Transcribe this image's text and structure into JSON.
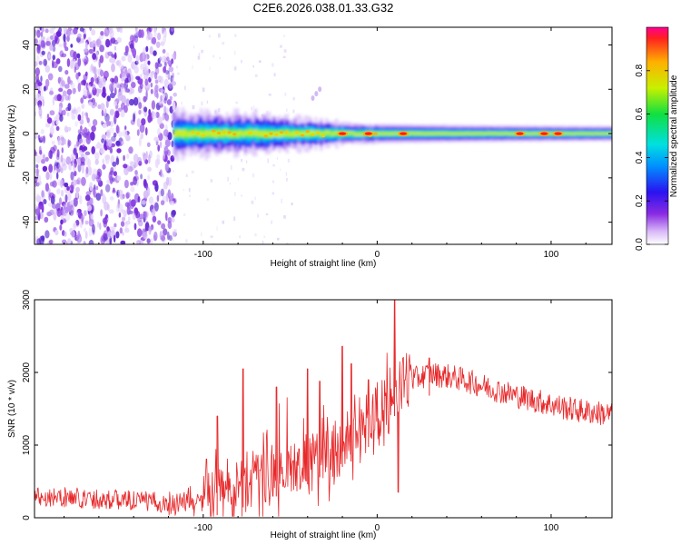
{
  "title": "C2E6.2026.038.01.33.G32",
  "chart_data": [
    {
      "type": "heatmap",
      "name": "spectrogram",
      "xlabel": "Height of straight line (km)",
      "ylabel": "Frequency (Hz)",
      "xlim": [
        -197,
        135
      ],
      "ylim": [
        -50,
        48
      ],
      "x_ticks": [
        -100,
        0,
        100
      ],
      "x_tick_labels": [
        "-100",
        "0",
        "100"
      ],
      "y_ticks": [
        -40,
        -20,
        0,
        20,
        40
      ],
      "y_tick_labels": [
        "-40",
        "-20",
        "0",
        "20",
        "40"
      ],
      "noise_region_x": [
        -197,
        -118
      ],
      "signal_region_x": [
        -117,
        135
      ],
      "signal_center_freq": 0,
      "signal_halfwidth": [
        [
          -117,
          6
        ],
        [
          -60,
          5
        ],
        [
          -30,
          3.5
        ],
        [
          -15,
          3
        ],
        [
          0,
          2.8
        ],
        [
          50,
          2.5
        ],
        [
          100,
          2.3
        ],
        [
          135,
          2.2
        ]
      ],
      "hotspots_x": [
        -20,
        -5,
        15,
        82,
        96,
        104
      ],
      "colorbar": {
        "label": "Normalized spectral amplitude",
        "range": [
          0,
          1
        ],
        "ticks": [
          0.0,
          0.2,
          0.4,
          0.6,
          0.8
        ],
        "tick_labels": [
          "0.0",
          "0.2",
          "0.4",
          "0.6",
          "0.8"
        ]
      }
    },
    {
      "type": "line",
      "name": "snr",
      "xlabel": "Height of straight line (km)",
      "ylabel": "SNR (10 * v/v)",
      "xlim": [
        -197,
        135
      ],
      "ylim": [
        0,
        3000
      ],
      "x_ticks": [
        -100,
        0,
        100
      ],
      "x_tick_labels": [
        "-100",
        "0",
        "100"
      ],
      "y_ticks": [
        0,
        1000,
        2000,
        3000
      ],
      "y_tick_labels": [
        "0",
        "1000",
        "2000",
        "3000"
      ],
      "color": "#e8282a",
      "series": [
        {
          "name": "SNR",
          "x": [
            -197,
            -180,
            -160,
            -140,
            -120,
            -110,
            -100,
            -90,
            -80,
            -70,
            -60,
            -50,
            -40,
            -30,
            -20,
            -10,
            0,
            5,
            10,
            15,
            20,
            30,
            40,
            50,
            60,
            70,
            80,
            90,
            100,
            110,
            120,
            135
          ],
          "baseline": [
            300,
            280,
            260,
            240,
            200,
            230,
            280,
            350,
            420,
            500,
            580,
            650,
            760,
            900,
            1000,
            1150,
            1400,
            1550,
            1700,
            1850,
            1900,
            1980,
            1950,
            1900,
            1820,
            1750,
            1680,
            1620,
            1560,
            1500,
            1460,
            1420
          ],
          "peaks": [
            [
              -92,
              1400
            ],
            [
              -77,
              2050
            ],
            [
              -58,
              1800
            ],
            [
              -40,
              2050
            ],
            [
              -33,
              1880
            ],
            [
              -20,
              2360
            ],
            [
              -15,
              2120
            ],
            [
              -5,
              1900
            ],
            [
              10,
              3000
            ],
            [
              12,
              350
            ],
            [
              30,
              2200
            ]
          ]
        }
      ]
    }
  ]
}
